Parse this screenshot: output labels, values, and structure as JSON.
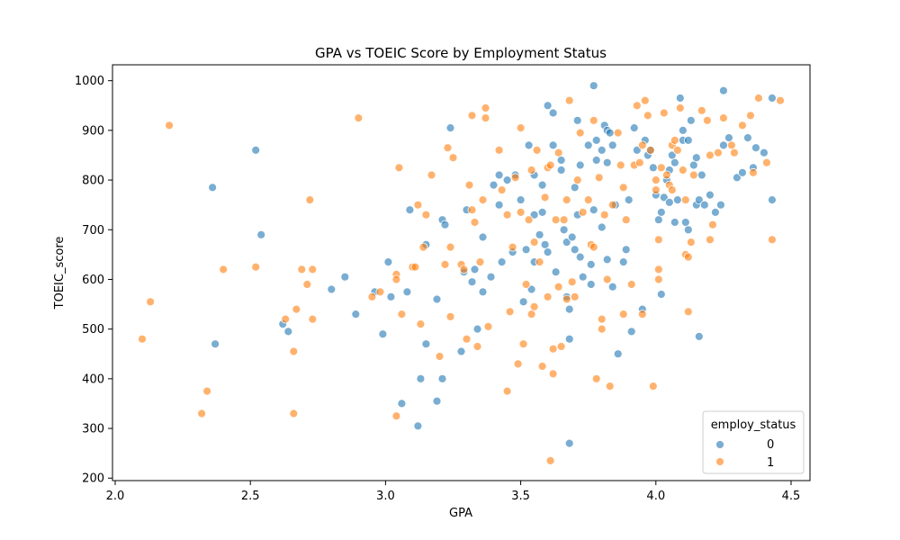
{
  "chart_data": {
    "type": "scatter",
    "title": "GPA vs TOEIC Score by Employment Status",
    "xlabel": "GPA",
    "ylabel": "TOEIC_score",
    "xlim": [
      1.99,
      4.57
    ],
    "ylim": [
      195,
      1032
    ],
    "xticks": [
      2.0,
      2.5,
      3.0,
      3.5,
      4.0,
      4.5
    ],
    "yticks": [
      200,
      300,
      400,
      500,
      600,
      700,
      800,
      900,
      1000
    ],
    "xtick_labels": [
      "2.0",
      "2.5",
      "3.0",
      "3.5",
      "4.0",
      "4.5"
    ],
    "ytick_labels": [
      "200",
      "300",
      "400",
      "500",
      "600",
      "700",
      "800",
      "900",
      "1000"
    ],
    "grid": false,
    "legend": {
      "title": "employ_status",
      "placement": "bottom-right"
    },
    "series": [
      {
        "name": "0",
        "color": "#1f77b4",
        "points": [
          [
            2.36,
            785
          ],
          [
            2.37,
            470
          ],
          [
            2.52,
            860
          ],
          [
            2.54,
            690
          ],
          [
            2.62,
            510
          ],
          [
            2.64,
            495
          ],
          [
            2.8,
            580
          ],
          [
            2.85,
            605
          ],
          [
            2.89,
            530
          ],
          [
            2.96,
            575
          ],
          [
            2.99,
            490
          ],
          [
            3.01,
            635
          ],
          [
            3.02,
            565
          ],
          [
            3.06,
            350
          ],
          [
            3.08,
            575
          ],
          [
            3.09,
            740
          ],
          [
            3.12,
            305
          ],
          [
            3.13,
            400
          ],
          [
            3.15,
            670
          ],
          [
            3.15,
            470
          ],
          [
            3.19,
            560
          ],
          [
            3.19,
            355
          ],
          [
            3.21,
            400
          ],
          [
            3.21,
            720
          ],
          [
            3.22,
            710
          ],
          [
            3.24,
            905
          ],
          [
            3.28,
            455
          ],
          [
            3.29,
            615
          ],
          [
            3.3,
            740
          ],
          [
            3.32,
            595
          ],
          [
            3.33,
            620
          ],
          [
            3.34,
            500
          ],
          [
            3.36,
            575
          ],
          [
            3.36,
            685
          ],
          [
            3.39,
            605
          ],
          [
            3.4,
            790
          ],
          [
            3.42,
            750
          ],
          [
            3.42,
            810
          ],
          [
            3.43,
            635
          ],
          [
            3.45,
            800
          ],
          [
            3.47,
            655
          ],
          [
            3.48,
            810
          ],
          [
            3.5,
            760
          ],
          [
            3.51,
            555
          ],
          [
            3.52,
            660
          ],
          [
            3.53,
            870
          ],
          [
            3.54,
            580
          ],
          [
            3.55,
            810
          ],
          [
            3.55,
            730
          ],
          [
            3.55,
            635
          ],
          [
            3.57,
            690
          ],
          [
            3.58,
            790
          ],
          [
            3.58,
            735
          ],
          [
            3.59,
            670
          ],
          [
            3.6,
            950
          ],
          [
            3.6,
            655
          ],
          [
            3.62,
            935
          ],
          [
            3.62,
            870
          ],
          [
            3.63,
            615
          ],
          [
            3.65,
            840
          ],
          [
            3.65,
            820
          ],
          [
            3.66,
            700
          ],
          [
            3.67,
            565
          ],
          [
            3.67,
            675
          ],
          [
            3.68,
            540
          ],
          [
            3.68,
            480
          ],
          [
            3.68,
            270
          ],
          [
            3.69,
            685
          ],
          [
            3.7,
            660
          ],
          [
            3.7,
            785
          ],
          [
            3.71,
            920
          ],
          [
            3.71,
            730
          ],
          [
            3.72,
            830
          ],
          [
            3.72,
            645
          ],
          [
            3.73,
            605
          ],
          [
            3.75,
            870
          ],
          [
            3.76,
            630
          ],
          [
            3.76,
            590
          ],
          [
            3.77,
            990
          ],
          [
            3.77,
            740
          ],
          [
            3.78,
            880
          ],
          [
            3.78,
            840
          ],
          [
            3.8,
            860
          ],
          [
            3.8,
            705
          ],
          [
            3.81,
            910
          ],
          [
            3.82,
            900
          ],
          [
            3.82,
            835
          ],
          [
            3.82,
            640
          ],
          [
            3.83,
            895
          ],
          [
            3.84,
            585
          ],
          [
            3.84,
            870
          ],
          [
            3.85,
            750
          ],
          [
            3.86,
            450
          ],
          [
            3.88,
            635
          ],
          [
            3.89,
            660
          ],
          [
            3.9,
            760
          ],
          [
            3.91,
            495
          ],
          [
            3.92,
            905
          ],
          [
            3.93,
            860
          ],
          [
            3.95,
            540
          ],
          [
            3.96,
            880
          ],
          [
            3.97,
            850
          ],
          [
            3.98,
            860
          ],
          [
            3.99,
            825
          ],
          [
            4.0,
            770
          ],
          [
            4.01,
            720
          ],
          [
            4.02,
            570
          ],
          [
            4.02,
            735
          ],
          [
            4.03,
            765
          ],
          [
            4.04,
            800
          ],
          [
            4.05,
            755
          ],
          [
            4.05,
            820
          ],
          [
            4.06,
            850
          ],
          [
            4.07,
            715
          ],
          [
            4.07,
            835
          ],
          [
            4.08,
            760
          ],
          [
            4.09,
            965
          ],
          [
            4.1,
            900
          ],
          [
            4.1,
            880
          ],
          [
            4.11,
            715
          ],
          [
            4.12,
            880
          ],
          [
            4.12,
            700
          ],
          [
            4.13,
            920
          ],
          [
            4.14,
            830
          ],
          [
            4.15,
            750
          ],
          [
            4.15,
            845
          ],
          [
            4.16,
            485
          ],
          [
            4.16,
            760
          ],
          [
            4.17,
            810
          ],
          [
            4.18,
            750
          ],
          [
            4.2,
            770
          ],
          [
            4.22,
            735
          ],
          [
            4.24,
            750
          ],
          [
            4.25,
            980
          ],
          [
            4.25,
            870
          ],
          [
            4.27,
            885
          ],
          [
            4.3,
            805
          ],
          [
            4.32,
            815
          ],
          [
            4.34,
            885
          ],
          [
            4.36,
            825
          ],
          [
            4.37,
            865
          ],
          [
            4.4,
            855
          ],
          [
            4.43,
            965
          ],
          [
            4.43,
            760
          ]
        ]
      },
      {
        "name": "1",
        "color": "#ff7f0e",
        "points": [
          [
            2.1,
            480
          ],
          [
            2.13,
            555
          ],
          [
            2.2,
            910
          ],
          [
            2.32,
            330
          ],
          [
            2.34,
            375
          ],
          [
            2.4,
            620
          ],
          [
            2.52,
            625
          ],
          [
            2.63,
            520
          ],
          [
            2.66,
            455
          ],
          [
            2.66,
            330
          ],
          [
            2.67,
            540
          ],
          [
            2.69,
            620
          ],
          [
            2.71,
            590
          ],
          [
            2.72,
            760
          ],
          [
            2.73,
            620
          ],
          [
            2.73,
            520
          ],
          [
            2.9,
            925
          ],
          [
            2.95,
            565
          ],
          [
            2.98,
            575
          ],
          [
            3.04,
            325
          ],
          [
            3.04,
            610
          ],
          [
            3.04,
            600
          ],
          [
            3.05,
            825
          ],
          [
            3.06,
            530
          ],
          [
            3.1,
            625
          ],
          [
            3.11,
            625
          ],
          [
            3.12,
            750
          ],
          [
            3.13,
            510
          ],
          [
            3.14,
            665
          ],
          [
            3.15,
            730
          ],
          [
            3.17,
            810
          ],
          [
            3.2,
            445
          ],
          [
            3.22,
            630
          ],
          [
            3.23,
            865
          ],
          [
            3.24,
            665
          ],
          [
            3.24,
            525
          ],
          [
            3.25,
            845
          ],
          [
            3.28,
            630
          ],
          [
            3.29,
            620
          ],
          [
            3.3,
            480
          ],
          [
            3.31,
            790
          ],
          [
            3.32,
            930
          ],
          [
            3.32,
            740
          ],
          [
            3.33,
            715
          ],
          [
            3.34,
            465
          ],
          [
            3.35,
            635
          ],
          [
            3.36,
            760
          ],
          [
            3.37,
            945
          ],
          [
            3.37,
            925
          ],
          [
            3.38,
            505
          ],
          [
            3.42,
            860
          ],
          [
            3.43,
            780
          ],
          [
            3.45,
            730
          ],
          [
            3.45,
            375
          ],
          [
            3.46,
            535
          ],
          [
            3.47,
            665
          ],
          [
            3.48,
            805
          ],
          [
            3.49,
            430
          ],
          [
            3.5,
            905
          ],
          [
            3.5,
            735
          ],
          [
            3.51,
            470
          ],
          [
            3.52,
            590
          ],
          [
            3.53,
            720
          ],
          [
            3.54,
            820
          ],
          [
            3.54,
            530
          ],
          [
            3.55,
            675
          ],
          [
            3.55,
            545
          ],
          [
            3.56,
            860
          ],
          [
            3.57,
            635
          ],
          [
            3.58,
            425
          ],
          [
            3.59,
            765
          ],
          [
            3.6,
            825
          ],
          [
            3.6,
            565
          ],
          [
            3.61,
            830
          ],
          [
            3.61,
            235
          ],
          [
            3.62,
            460
          ],
          [
            3.62,
            410
          ],
          [
            3.63,
            720
          ],
          [
            3.64,
            855
          ],
          [
            3.64,
            585
          ],
          [
            3.65,
            465
          ],
          [
            3.66,
            720
          ],
          [
            3.67,
            760
          ],
          [
            3.67,
            560
          ],
          [
            3.68,
            960
          ],
          [
            3.69,
            595
          ],
          [
            3.7,
            565
          ],
          [
            3.71,
            800
          ],
          [
            3.72,
            895
          ],
          [
            3.73,
            735
          ],
          [
            3.75,
            760
          ],
          [
            3.76,
            670
          ],
          [
            3.77,
            665
          ],
          [
            3.77,
            920
          ],
          [
            3.78,
            400
          ],
          [
            3.79,
            805
          ],
          [
            3.8,
            520
          ],
          [
            3.8,
            500
          ],
          [
            3.81,
            730
          ],
          [
            3.82,
            600
          ],
          [
            3.83,
            385
          ],
          [
            3.84,
            750
          ],
          [
            3.86,
            895
          ],
          [
            3.87,
            830
          ],
          [
            3.88,
            530
          ],
          [
            3.88,
            785
          ],
          [
            3.89,
            720
          ],
          [
            3.91,
            590
          ],
          [
            3.92,
            830
          ],
          [
            3.93,
            950
          ],
          [
            3.94,
            835
          ],
          [
            3.95,
            870
          ],
          [
            3.95,
            530
          ],
          [
            3.96,
            960
          ],
          [
            3.97,
            930
          ],
          [
            3.98,
            860
          ],
          [
            3.99,
            385
          ],
          [
            4.0,
            800
          ],
          [
            4.0,
            780
          ],
          [
            4.01,
            620
          ],
          [
            4.01,
            600
          ],
          [
            4.01,
            680
          ],
          [
            4.02,
            825
          ],
          [
            4.03,
            935
          ],
          [
            4.04,
            810
          ],
          [
            4.05,
            790
          ],
          [
            4.06,
            780
          ],
          [
            4.06,
            870
          ],
          [
            4.07,
            880
          ],
          [
            4.08,
            860
          ],
          [
            4.09,
            945
          ],
          [
            4.1,
            820
          ],
          [
            4.11,
            760
          ],
          [
            4.11,
            650
          ],
          [
            4.12,
            645
          ],
          [
            4.12,
            535
          ],
          [
            4.13,
            675
          ],
          [
            4.14,
            810
          ],
          [
            4.17,
            940
          ],
          [
            4.19,
            920
          ],
          [
            4.2,
            850
          ],
          [
            4.2,
            680
          ],
          [
            4.21,
            710
          ],
          [
            4.23,
            855
          ],
          [
            4.25,
            925
          ],
          [
            4.28,
            870
          ],
          [
            4.29,
            855
          ],
          [
            4.32,
            910
          ],
          [
            4.35,
            930
          ],
          [
            4.36,
            815
          ],
          [
            4.38,
            965
          ],
          [
            4.41,
            835
          ],
          [
            4.43,
            680
          ],
          [
            4.46,
            960
          ]
        ]
      }
    ]
  }
}
